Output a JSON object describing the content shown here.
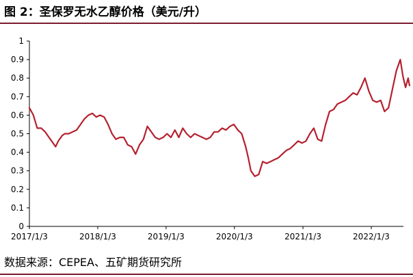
{
  "title": "图 2：圣保罗无水乙醇价格（美元/升）",
  "source": "数据来源：CEPEA、五矿期货研究所",
  "colors": {
    "line": "#b5202e",
    "axis": "#000000",
    "rule": "#7a1a2e"
  },
  "chart_data": {
    "type": "line",
    "title": "",
    "xlabel": "",
    "ylabel": "",
    "grid": false,
    "legend": "none",
    "ylim": [
      0,
      1
    ],
    "xlim": [
      "2017-01-03",
      "2022-07-31"
    ],
    "yticks": [
      "0",
      "0.1",
      "0.2",
      "0.3",
      "0.4",
      "0.5",
      "0.6",
      "0.7",
      "0.8",
      "0.9",
      "1"
    ],
    "xticks": [
      {
        "label": "2017/1/3",
        "date": "2017-01-03"
      },
      {
        "label": "2018/1/3",
        "date": "2018-01-03"
      },
      {
        "label": "2019/1/3",
        "date": "2019-01-03"
      },
      {
        "label": "2020/1/3",
        "date": "2020-01-03"
      },
      {
        "label": "2021/1/3",
        "date": "2021-01-03"
      },
      {
        "label": "2022/1/3",
        "date": "2022-01-03"
      }
    ],
    "series": [
      {
        "x": [
          "2017-01-03",
          "2017-01-24",
          "2017-02-14",
          "2017-03-07",
          "2017-03-28",
          "2017-04-11",
          "2017-05-02",
          "2017-05-23",
          "2017-06-06",
          "2017-06-27",
          "2017-07-11",
          "2017-08-01",
          "2017-08-22",
          "2017-09-12",
          "2017-10-03",
          "2017-10-24",
          "2017-11-14",
          "2017-12-05",
          "2017-12-26",
          "2018-01-16",
          "2018-02-06",
          "2018-02-27",
          "2018-03-20",
          "2018-04-10",
          "2018-05-01",
          "2018-05-22",
          "2018-06-12",
          "2018-07-03",
          "2018-07-24",
          "2018-08-14",
          "2018-09-04",
          "2018-09-25",
          "2018-10-16",
          "2018-11-06",
          "2018-11-27",
          "2018-12-18",
          "2019-01-08",
          "2019-01-29",
          "2019-02-19",
          "2019-03-12",
          "2019-04-02",
          "2019-04-23",
          "2019-05-14",
          "2019-06-04",
          "2019-06-25",
          "2019-07-16",
          "2019-08-06",
          "2019-08-27",
          "2019-09-17",
          "2019-10-08",
          "2019-10-29",
          "2019-11-19",
          "2019-12-10",
          "2019-12-31",
          "2020-01-21",
          "2020-02-11",
          "2020-03-03",
          "2020-03-17",
          "2020-03-31",
          "2020-04-21",
          "2020-05-12",
          "2020-06-02",
          "2020-06-23",
          "2020-07-14",
          "2020-08-04",
          "2020-08-25",
          "2020-09-15",
          "2020-10-06",
          "2020-10-27",
          "2020-11-17",
          "2020-12-08",
          "2020-12-29",
          "2021-01-19",
          "2021-02-09",
          "2021-03-02",
          "2021-03-23",
          "2021-04-13",
          "2021-05-04",
          "2021-05-25",
          "2021-06-15",
          "2021-07-06",
          "2021-07-27",
          "2021-08-17",
          "2021-09-07",
          "2021-09-28",
          "2021-10-19",
          "2021-11-09",
          "2021-11-30",
          "2021-12-21",
          "2022-01-11",
          "2022-02-01",
          "2022-02-22",
          "2022-03-15",
          "2022-04-05",
          "2022-04-26",
          "2022-05-17",
          "2022-06-07",
          "2022-06-21",
          "2022-07-05",
          "2022-07-19",
          "2022-07-26"
        ],
        "y": [
          0.64,
          0.6,
          0.53,
          0.53,
          0.51,
          0.49,
          0.46,
          0.43,
          0.46,
          0.49,
          0.5,
          0.5,
          0.51,
          0.52,
          0.55,
          0.58,
          0.6,
          0.61,
          0.59,
          0.6,
          0.59,
          0.55,
          0.5,
          0.47,
          0.48,
          0.48,
          0.44,
          0.43,
          0.39,
          0.44,
          0.47,
          0.54,
          0.51,
          0.48,
          0.47,
          0.48,
          0.5,
          0.48,
          0.52,
          0.48,
          0.53,
          0.5,
          0.48,
          0.5,
          0.49,
          0.48,
          0.47,
          0.48,
          0.51,
          0.51,
          0.53,
          0.52,
          0.54,
          0.55,
          0.52,
          0.5,
          0.43,
          0.37,
          0.3,
          0.27,
          0.28,
          0.35,
          0.34,
          0.35,
          0.36,
          0.37,
          0.39,
          0.41,
          0.42,
          0.44,
          0.46,
          0.45,
          0.46,
          0.5,
          0.53,
          0.47,
          0.46,
          0.55,
          0.62,
          0.63,
          0.66,
          0.67,
          0.68,
          0.7,
          0.72,
          0.71,
          0.75,
          0.8,
          0.73,
          0.68,
          0.67,
          0.68,
          0.62,
          0.64,
          0.74,
          0.84,
          0.9,
          0.81,
          0.75,
          0.8,
          0.76
        ]
      }
    ]
  }
}
